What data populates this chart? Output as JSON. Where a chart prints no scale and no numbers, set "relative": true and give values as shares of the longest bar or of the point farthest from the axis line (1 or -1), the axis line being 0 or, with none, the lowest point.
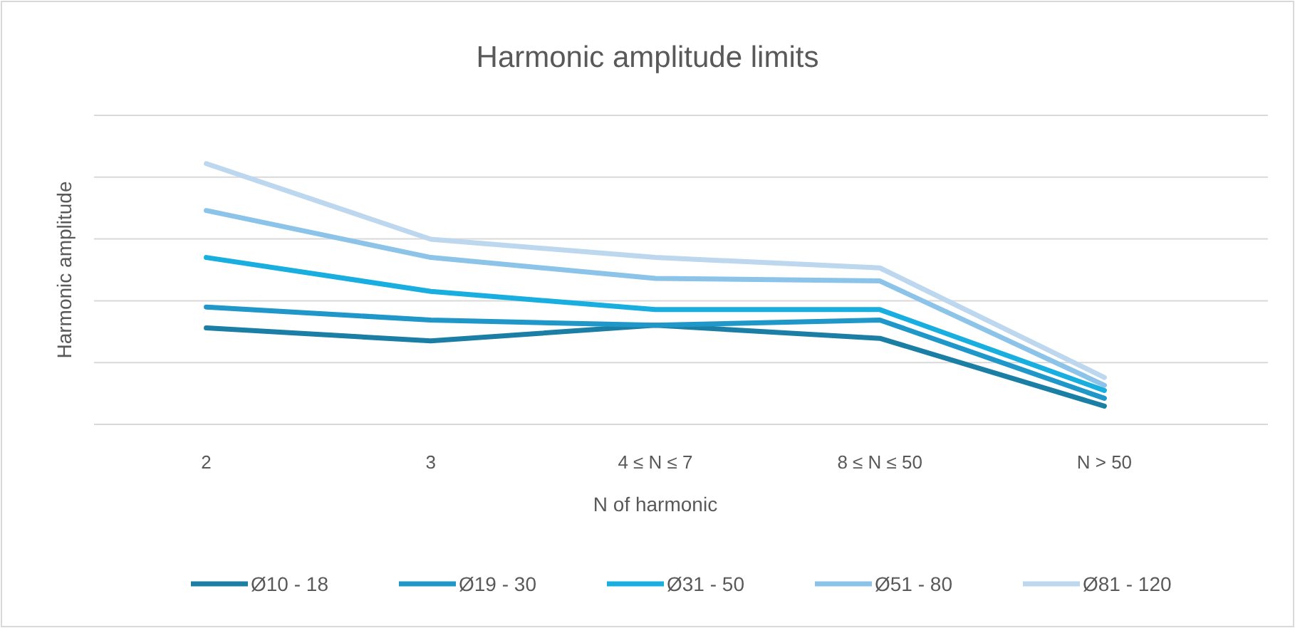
{
  "chart_data": {
    "type": "line",
    "title": "Harmonic amplitude limits",
    "xlabel": "N of harmonic",
    "ylabel": "Harmonic amplitude",
    "relative": true,
    "grid": true,
    "legend": "bottom",
    "line_style": "solid",
    "categories": [
      "2",
      "3",
      "4 ≤ N ≤ 7",
      "8 ≤ N ≤ 50",
      "N > 50"
    ],
    "series": [
      {
        "name": "Ø10 - 18",
        "color": "#1b7fa5",
        "values": [
          0.37,
          0.32,
          0.38,
          0.33,
          0.07
        ]
      },
      {
        "name": "Ø19 - 30",
        "color": "#1f97c8",
        "values": [
          0.45,
          0.4,
          0.38,
          0.4,
          0.1
        ]
      },
      {
        "name": "Ø31 - 50",
        "color": "#18aee0",
        "values": [
          0.64,
          0.51,
          0.44,
          0.44,
          0.13
        ]
      },
      {
        "name": "Ø51 - 80",
        "color": "#8cc3e8",
        "values": [
          0.82,
          0.64,
          0.56,
          0.55,
          0.15
        ]
      },
      {
        "name": "Ø81 - 120",
        "color": "#bdd7ee",
        "values": [
          1,
          0.71,
          0.64,
          0.6,
          0.18
        ]
      }
    ]
  }
}
